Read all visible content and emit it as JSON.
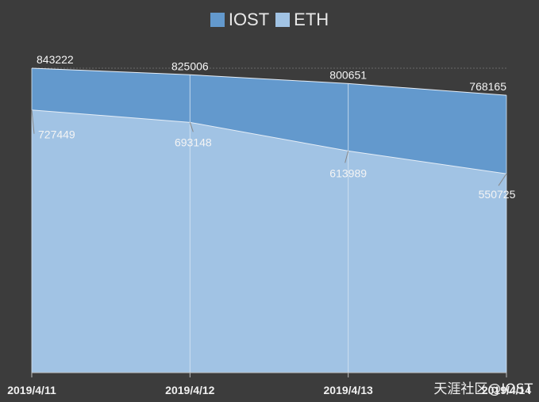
{
  "chart_data": {
    "type": "area",
    "categories": [
      "2019/4/11",
      "2019/4/12",
      "2019/4/13",
      "2019/4/14"
    ],
    "series": [
      {
        "name": "IOST",
        "values": [
          843222,
          825006,
          800651,
          768165
        ],
        "color": "#6399cd"
      },
      {
        "name": "ETH",
        "values": [
          727449,
          693148,
          613989,
          550725
        ],
        "color": "#a1c3e4"
      }
    ],
    "ylim": [
      0,
      843222
    ],
    "grid": false,
    "legend_position": "top-center",
    "background": "#3c3c3c"
  },
  "legend": [
    {
      "label": "IOST",
      "color": "#6399cd"
    },
    {
      "label": "ETH",
      "color": "#a1c3e4"
    }
  ],
  "watermark": "天涯社区@IOST"
}
